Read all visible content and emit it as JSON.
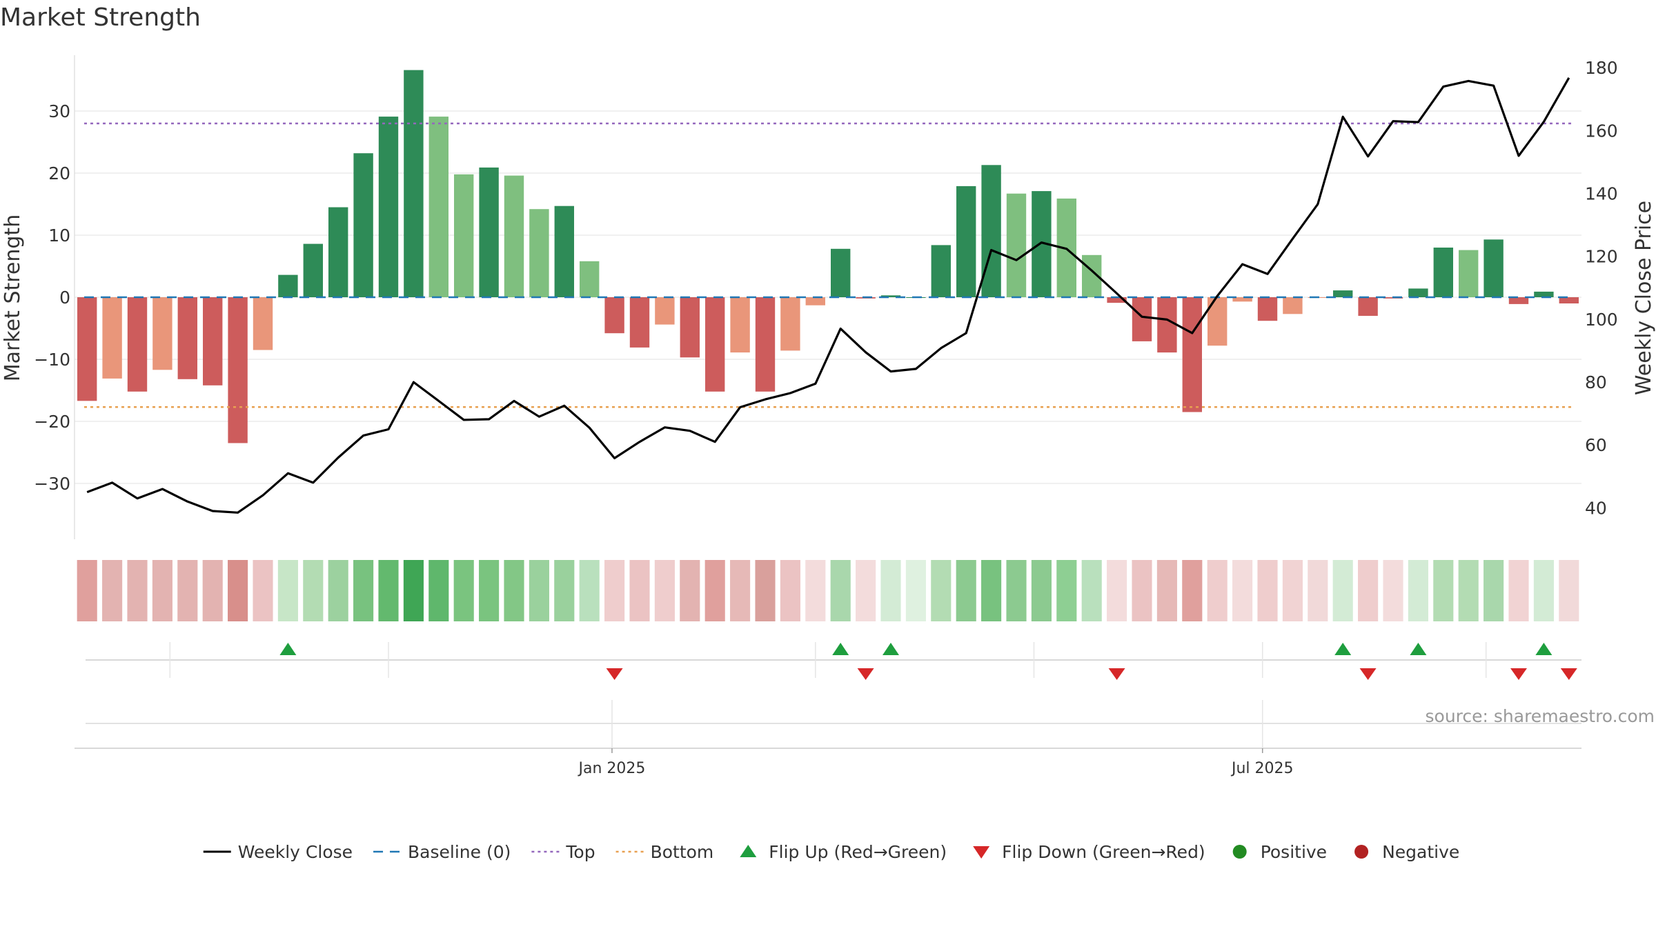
{
  "chart_data": {
    "type": "bar",
    "title": "Market Strength",
    "ylabel": "Market Strength",
    "y2label": "Weekly Close Price",
    "ylim": [
      -39,
      39
    ],
    "y2lim": [
      30,
      184
    ],
    "yticks": [
      30,
      20,
      10,
      0,
      -10,
      -20,
      -30
    ],
    "y2ticks": [
      180,
      160,
      140,
      120,
      100,
      80,
      60,
      40
    ],
    "top_line": 28,
    "bottom_line": -17.7,
    "baseline": 0,
    "x_date_ticks": [
      {
        "label": "Jan 2025",
        "index": 21.4
      },
      {
        "label": "Jul 2025",
        "index": 47.3
      }
    ],
    "weekly_grid_index": [
      3.8,
      12.5,
      29.5,
      38.2,
      47.3,
      56.2
    ],
    "strength": [
      -16.7,
      -13.1,
      -15.2,
      -11.7,
      -13.2,
      -14.2,
      -23.5,
      -8.5,
      3.6,
      8.6,
      14.5,
      23.2,
      29.1,
      36.6,
      29.1,
      19.8,
      20.9,
      19.6,
      14.2,
      14.7,
      5.8,
      -5.8,
      -8.1,
      -4.4,
      -9.7,
      -15.2,
      -8.9,
      -15.2,
      -8.6,
      -1.3,
      7.8,
      -0.2,
      0.3,
      -0.1,
      8.4,
      17.9,
      21.3,
      16.7,
      17.1,
      15.9,
      6.8,
      -0.9,
      -7.1,
      -8.9,
      -18.5,
      -7.8,
      -0.7,
      -3.8,
      -2.7,
      -0.1,
      1.1,
      -3.0,
      -0.2,
      1.4,
      8.0,
      7.6,
      9.3,
      -1.1,
      0.9,
      -1.0
    ],
    "bar_color": [
      "#cd5c5c",
      "#e9967a",
      "#cd5c5c",
      "#e9967a",
      "#cd5c5c",
      "#cd5c5c",
      "#cd5c5c",
      "#e9967a",
      "#2e8b57",
      "#2e8b57",
      "#2e8b57",
      "#2e8b57",
      "#2e8b57",
      "#2e8b57",
      "#7fbf7f",
      "#7fbf7f",
      "#2e8b57",
      "#7fbf7f",
      "#7fbf7f",
      "#2e8b57",
      "#7fbf7f",
      "#cd5c5c",
      "#cd5c5c",
      "#e9967a",
      "#cd5c5c",
      "#cd5c5c",
      "#e9967a",
      "#cd5c5c",
      "#e9967a",
      "#e9967a",
      "#2e8b57",
      "#cd5c5c",
      "#2e8b57",
      "#2e8b57",
      "#2e8b57",
      "#2e8b57",
      "#2e8b57",
      "#7fbf7f",
      "#2e8b57",
      "#7fbf7f",
      "#7fbf7f",
      "#cd5c5c",
      "#cd5c5c",
      "#cd5c5c",
      "#cd5c5c",
      "#e9967a",
      "#e9967a",
      "#cd5c5c",
      "#e9967a",
      "#e9967a",
      "#2e8b57",
      "#cd5c5c",
      "#cd5c5c",
      "#2e8b57",
      "#2e8b57",
      "#7fbf7f",
      "#2e8b57",
      "#cd5c5c",
      "#2e8b57",
      "#cd5c5c"
    ],
    "weekly_close": [
      45,
      48,
      43,
      46,
      42,
      39,
      38.5,
      44,
      51,
      48,
      56,
      63,
      65,
      80,
      74,
      68,
      68.2,
      74,
      69,
      72.5,
      65.5,
      55.8,
      61,
      65.6,
      64.5,
      61,
      72,
      74.5,
      76.5,
      79.5,
      97,
      89.5,
      83.4,
      84.2,
      90.8,
      95.6,
      122,
      118.8,
      124.4,
      122.4,
      115.5,
      108.2,
      100.8,
      99.9,
      95.6,
      107.4,
      117.5,
      114.4,
      125.6,
      136.6,
      164.4,
      151.8,
      163,
      162.7,
      174,
      175.8,
      174.3,
      152,
      162.8,
      176.8
    ],
    "heat_colors": [
      "#e0a09d",
      "#e3b3b1",
      "#e3b3b1",
      "#e3b3b1",
      "#e3b3b1",
      "#e3b3b1",
      "#d88f8b",
      "#ebc3c3",
      "#c7e6c7",
      "#b3dcb3",
      "#9cd19f",
      "#78c27f",
      "#63b96e",
      "#3fa655",
      "#5fb76c",
      "#7ac47f",
      "#7ac47f",
      "#83c786",
      "#9ad19d",
      "#9ad19d",
      "#b9e0bd",
      "#efcdcd",
      "#ebc3c3",
      "#efcdcd",
      "#e3b3b1",
      "#e0a09d",
      "#e6b9b7",
      "#d9a09c",
      "#ebc3c3",
      "#f3dcdc",
      "#a9d7ac",
      "#f3dcdc",
      "#d3ebd5",
      "#dff1e0",
      "#b3dcb3",
      "#8cca90",
      "#78c27f",
      "#8cca90",
      "#8cca90",
      "#8ecf93",
      "#b9e0bd",
      "#f3dcdc",
      "#ebc3c3",
      "#e6b9b7",
      "#e0a09d",
      "#efcdcd",
      "#f3dcdc",
      "#efcdcd",
      "#f1d3d3",
      "#f1d9d9",
      "#d3ebd5",
      "#efcdcd",
      "#f3dcdc",
      "#d3ebd5",
      "#b3dcb3",
      "#b3dcb3",
      "#a9d7ac",
      "#f1d3d3",
      "#d3ebd5",
      "#f1d9d9"
    ],
    "flip_up_index": [
      8,
      30,
      32,
      50,
      53,
      58
    ],
    "flip_down_index": [
      21,
      31,
      41,
      51,
      57,
      59
    ],
    "legend": [
      {
        "label": "Weekly Close",
        "kind": "line",
        "color": "#000000"
      },
      {
        "label": "Baseline (0)",
        "kind": "dash",
        "color": "#1f77b4"
      },
      {
        "label": "Top",
        "kind": "dot",
        "color": "#9467bd"
      },
      {
        "label": "Bottom",
        "kind": "dot",
        "color": "#e8a050"
      },
      {
        "label": "Flip Up (Red→Green)",
        "kind": "up",
        "color": "#1e9e3e"
      },
      {
        "label": "Flip Down (Green→Red)",
        "kind": "down",
        "color": "#d62728"
      },
      {
        "label": "Positive",
        "kind": "circle",
        "color": "#228b22"
      },
      {
        "label": "Negative",
        "kind": "circle",
        "color": "#b22222"
      }
    ],
    "source": "source: sharemaestro.com",
    "colors": {
      "line": "#000000",
      "baseline": "#1f77b4",
      "top": "#9467bd",
      "bottom": "#e8a050",
      "flip_up": "#1e9e3e",
      "flip_down": "#d62728"
    }
  }
}
